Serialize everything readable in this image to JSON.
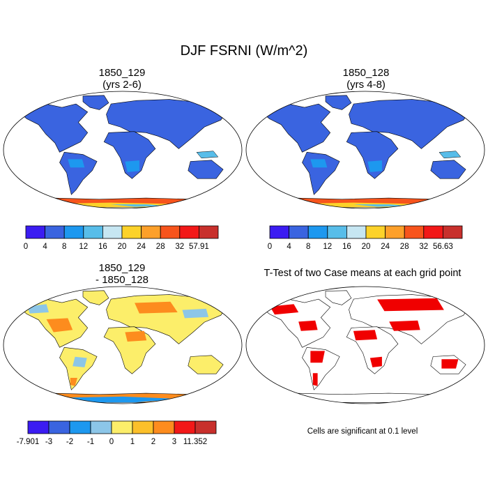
{
  "title": "DJF FSRNI (W/m^2)",
  "chart_data": [
    {
      "type": "heatmap",
      "panel": "top-left",
      "title_line1": "1850_129",
      "title_line2": "(yrs 2-6)",
      "projection": "Robinson world map",
      "colorbar": {
        "labels": [
          "0",
          "4",
          "8",
          "12",
          "16",
          "20",
          "24",
          "28",
          "32",
          "57.91"
        ],
        "colors": [
          "#3b1cf2",
          "#3a64e0",
          "#1d98ef",
          "#58bde9",
          "#c6e6f2",
          "#fcd22a",
          "#fda02a",
          "#f7541c",
          "#f21818",
          "#c8302c"
        ]
      }
    },
    {
      "type": "heatmap",
      "panel": "top-right",
      "title_line1": "1850_128",
      "title_line2": "(yrs 4-8)",
      "projection": "Robinson world map",
      "colorbar": {
        "labels": [
          "0",
          "4",
          "8",
          "12",
          "16",
          "20",
          "24",
          "28",
          "32",
          "56.63"
        ],
        "colors": [
          "#3b1cf2",
          "#3a64e0",
          "#1d98ef",
          "#58bde9",
          "#c6e6f2",
          "#fcd22a",
          "#fda02a",
          "#f7541c",
          "#f21818",
          "#c8302c"
        ]
      }
    },
    {
      "type": "heatmap",
      "panel": "bottom-left",
      "title_line1": "1850_129",
      "title_line2": "- 1850_128",
      "projection": "Robinson world map",
      "colorbar": {
        "labels": [
          "-7.901",
          "-3",
          "-2",
          "-1",
          "0",
          "1",
          "2",
          "3",
          "11.352"
        ],
        "colors": [
          "#3b1cf2",
          "#3a64e0",
          "#1d98ef",
          "#8cc6e8",
          "#fcee6a",
          "#fcc02a",
          "#fd8c1e",
          "#f21818",
          "#c8302c"
        ]
      }
    },
    {
      "type": "heatmap",
      "panel": "bottom-right",
      "title_line1": "T-Test of two Case means at each grid point",
      "projection": "Robinson world map",
      "footnote": "Cells are significant at 0.1 level",
      "significance_color": "#f00000"
    }
  ]
}
